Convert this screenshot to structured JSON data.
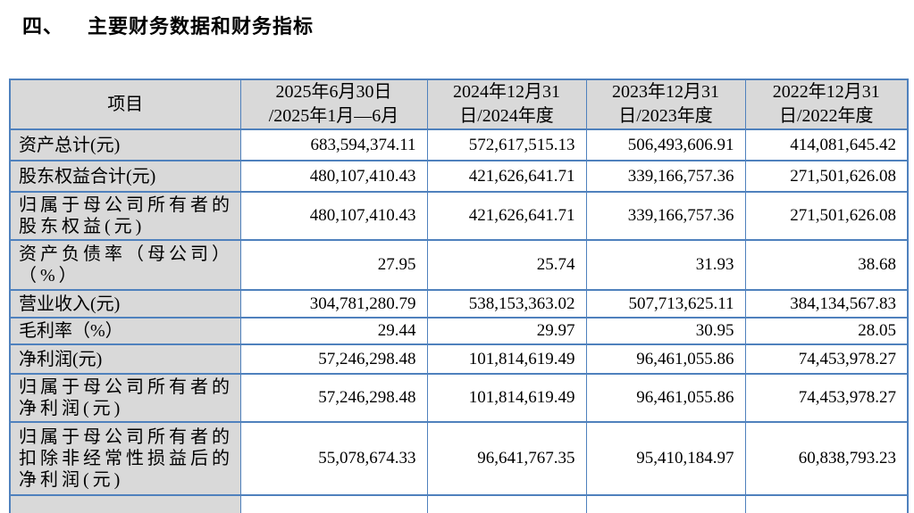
{
  "title": {
    "number": "四、",
    "text": "主要财务数据和财务指标"
  },
  "table": {
    "item_header": "项目",
    "period_headers": [
      "2025年6月30日\n/2025年1月—6月",
      "2024年12月31\n日/2024年度",
      "2023年12月31\n日/2023年度",
      "2022年12月31\n日/2022年度"
    ],
    "rows": [
      {
        "label": "资产总计(元)",
        "values": [
          "683,594,374.11",
          "572,617,515.13",
          "506,493,606.91",
          "414,081,645.42"
        ]
      },
      {
        "label": "股东权益合计(元)",
        "values": [
          "480,107,410.43",
          "421,626,641.71",
          "339,166,757.36",
          "271,501,626.08"
        ]
      },
      {
        "label": "归属于母公司所有者的\n股东权益(元)",
        "values": [
          "480,107,410.43",
          "421,626,641.71",
          "339,166,757.36",
          "271,501,626.08"
        ]
      },
      {
        "label": "资产负债率（母公司）\n（%）",
        "values": [
          "27.95",
          "25.74",
          "31.93",
          "38.68"
        ]
      },
      {
        "label": "营业收入(元)",
        "values": [
          "304,781,280.79",
          "538,153,363.02",
          "507,713,625.11",
          "384,134,567.83"
        ]
      },
      {
        "label": "毛利率（%）",
        "values": [
          "29.44",
          "29.97",
          "30.95",
          "28.05"
        ]
      },
      {
        "label": "净利润(元)",
        "values": [
          "57,246,298.48",
          "101,814,619.49",
          "96,461,055.86",
          "74,453,978.27"
        ]
      },
      {
        "label": "归属于母公司所有者的\n净利润(元)",
        "values": [
          "57,246,298.48",
          "101,814,619.49",
          "96,461,055.86",
          "74,453,978.27"
        ]
      },
      {
        "label": "归属于母公司所有者的\n扣除非经常性损益后的\n净利润(元)",
        "values": [
          "55,078,674.33",
          "96,641,767.35",
          "95,410,184.97",
          "60,838,793.23"
        ]
      }
    ]
  },
  "colors": {
    "border": "#4f81bd",
    "header_bg": "#d9d9d9",
    "text": "#000000"
  }
}
